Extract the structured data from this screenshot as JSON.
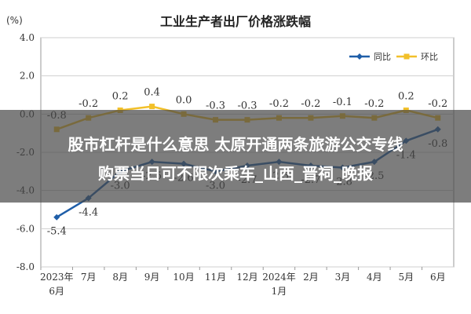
{
  "chart_data": {
    "type": "line",
    "title": "工业生产者出厂价格涨跌幅",
    "unit_label": "(%)",
    "x_ticks": [
      [
        "2023年",
        "6月"
      ],
      [
        "7月"
      ],
      [
        "8月"
      ],
      [
        "9月"
      ],
      [
        "10月"
      ],
      [
        "11月"
      ],
      [
        "12月"
      ],
      [
        "2024年",
        "1月"
      ],
      [
        "2月"
      ],
      [
        "3月"
      ],
      [
        "4月"
      ],
      [
        "5月"
      ],
      [
        "6月"
      ]
    ],
    "ylim": [
      -8.0,
      4.0
    ],
    "y_ticks": [
      "4.0",
      "2.0",
      "0.0",
      "-2.0",
      "-4.0",
      "-6.0",
      "-8.0"
    ],
    "legend_position": "top-right",
    "series": [
      {
        "name": "同比",
        "color": "#1f5ea8",
        "values": [
          -5.4,
          -4.4,
          -3.0,
          -2.5,
          -2.6,
          -3.0,
          -2.7,
          -2.5,
          -2.7,
          -2.8,
          -2.5,
          -1.4,
          -0.8
        ],
        "labels": [
          "-5.4",
          "-4.4",
          "-3.0",
          "-2.5",
          "-2.6",
          "-3.0",
          "-2.7",
          "-2.5",
          "-2.7",
          "-2.8",
          "-2.5",
          "-1.4",
          "-0.8"
        ]
      },
      {
        "name": "环比",
        "color": "#f2c02a",
        "values": [
          -0.8,
          -0.2,
          0.2,
          0.4,
          0.0,
          -0.3,
          -0.3,
          -0.2,
          -0.2,
          -0.1,
          -0.2,
          0.2,
          -0.2
        ],
        "labels": [
          "-0.8",
          "-0.2",
          "0.2",
          "0.4",
          "0.0",
          "-0.3",
          "-0.3",
          "-0.2",
          "-0.2",
          "-0.1",
          "-0.2",
          "0.2",
          "-0.2"
        ]
      }
    ]
  },
  "overlay": {
    "line1": "股市杠杆是什么意思 太原开通两条旅游公交专线",
    "line2": "购票当日可不限次乘车_山西_晋祠_晚报"
  }
}
